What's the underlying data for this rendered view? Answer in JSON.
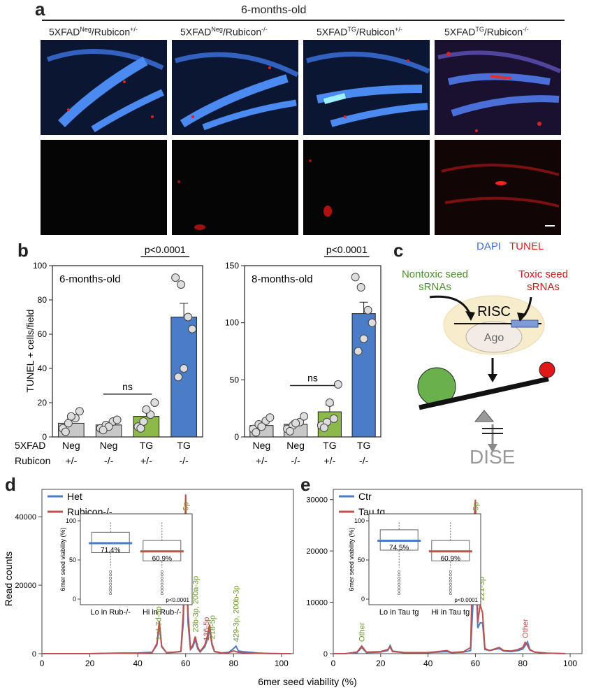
{
  "panel_a": {
    "letter": "a",
    "header": "6-months-old",
    "groups": [
      {
        "prefix": "5XFAD",
        "sup1": "Neg",
        "mid": "/Rubicon",
        "sup2": "+/-"
      },
      {
        "prefix": "5XFAD",
        "sup1": "Neg",
        "mid": "/Rubicon",
        "sup2": "-/-"
      },
      {
        "prefix": "5XFAD",
        "sup1": "TG",
        "mid": "/Rubicon",
        "sup2": "+/-"
      },
      {
        "prefix": "5XFAD",
        "sup1": "TG",
        "mid": "/Rubicon",
        "sup2": "-/-"
      }
    ],
    "stain_dapi": "DAPI",
    "stain_tunel": "TUNEL",
    "colors": {
      "dapi": "#3b6fd8",
      "tunel": "#e02020",
      "background": "#050505"
    }
  },
  "panel_b": {
    "letter": "b",
    "ylabel": "TUNEL + cells/field",
    "row_label_1": "5XFAD",
    "row_label_2": "Rubicon",
    "categories": [
      {
        "top": "Neg",
        "bottom": "+/-"
      },
      {
        "top": "Neg",
        "bottom": "-/-"
      },
      {
        "top": "TG",
        "bottom": "+/-"
      },
      {
        "top": "TG",
        "bottom": "-/-"
      }
    ],
    "bar_colors": [
      "#c8c8c8",
      "#c8c8c8",
      "#8db84a",
      "#4a7cc7"
    ],
    "plots": [
      {
        "title": "6-months-old",
        "yticks": [
          "0",
          "20",
          "40",
          "60",
          "80",
          "100"
        ],
        "ylim": [
          0,
          100
        ],
        "means": [
          8,
          7,
          12,
          70
        ],
        "errors": [
          2.5,
          1.5,
          3,
          8
        ],
        "points": [
          [
            5,
            8,
            11,
            15,
            12,
            3
          ],
          [
            5,
            7,
            9,
            10,
            6,
            4
          ],
          [
            6,
            9,
            13,
            20,
            16,
            5
          ],
          [
            93,
            89,
            70,
            63,
            40,
            35
          ]
        ],
        "ns_label": "ns",
        "p_label": "p<0.0001"
      },
      {
        "title": "8-months-old",
        "yticks": [
          "0",
          "50",
          "100",
          "150"
        ],
        "ylim": [
          0,
          150
        ],
        "means": [
          10,
          11,
          22,
          108
        ],
        "errors": [
          2.5,
          3,
          6,
          10
        ],
        "points": [
          [
            7,
            11,
            14,
            17,
            9,
            4
          ],
          [
            7,
            10,
            13,
            18,
            12,
            5
          ],
          [
            10,
            13,
            16,
            46,
            30,
            8
          ],
          [
            140,
            131,
            111,
            100,
            86,
            75
          ]
        ],
        "ns_label": "ns",
        "p_label": "p<0.0001"
      }
    ]
  },
  "panel_c": {
    "letter": "c",
    "nontoxic": "Nontoxic seed sRNAs",
    "toxic": "Toxic seed sRNAs",
    "complex": "RISC",
    "protein": "Ago",
    "outcome": "DISE",
    "colors": {
      "nontoxic": "#4c8f2f",
      "toxic": "#d01818",
      "complex": "#f7edcc",
      "green_ball": "#6ab04c",
      "red_ball": "#e01818"
    }
  },
  "chart_data": [
    {
      "panel": "d",
      "type": "line",
      "xlabel": "6mer seed viability (%)",
      "ylabel": "Read counts",
      "xlim": [
        0,
        100
      ],
      "ylim": [
        0,
        48000
      ],
      "xticks": [
        "0",
        "20",
        "40",
        "60",
        "80",
        "100"
      ],
      "yticks": [
        "0",
        "20000",
        "40000"
      ],
      "legend_placement": "top-left",
      "series": [
        {
          "name": "Het",
          "color": "#4a7cc7",
          "x": [
            0,
            10,
            20,
            30,
            40,
            46,
            48,
            49,
            50,
            52,
            55,
            58,
            59,
            60,
            61,
            62,
            63,
            64,
            65,
            66,
            68,
            69,
            70,
            71,
            72,
            75,
            78,
            80,
            81,
            82,
            84,
            90,
            95,
            100,
            104
          ],
          "y": [
            0,
            0,
            0,
            150,
            200,
            400,
            2500,
            8500,
            2000,
            300,
            400,
            600,
            9000,
            34000,
            9000,
            1200,
            2000,
            4000,
            1500,
            500,
            2000,
            4000,
            7000,
            2500,
            600,
            200,
            400,
            1500,
            2200,
            800,
            600,
            200,
            50,
            0,
            0
          ]
        },
        {
          "name": "Rubicon-/-",
          "color": "#c0504d",
          "x": [
            0,
            10,
            20,
            30,
            40,
            46,
            48,
            49,
            50,
            52,
            55,
            58,
            59,
            60,
            61,
            62,
            63,
            64,
            65,
            66,
            68,
            69,
            70,
            71,
            72,
            75,
            78,
            80,
            81,
            82,
            84,
            90,
            95,
            100,
            104
          ],
          "y": [
            0,
            0,
            0,
            100,
            150,
            300,
            3000,
            9500,
            2200,
            300,
            400,
            700,
            12000,
            46500,
            12000,
            1500,
            2500,
            5000,
            2000,
            600,
            2500,
            5000,
            8500,
            3000,
            700,
            200,
            300,
            800,
            600,
            400,
            300,
            100,
            50,
            0,
            0
          ]
        }
      ],
      "annotations": [
        {
          "text": "9-5p",
          "x": 60,
          "color": "#6a9a2a"
        },
        {
          "text": "Let-7d-5p",
          "x": 48.5,
          "color": "#6a9a2a"
        },
        {
          "text": "23b-3p, 200a-3p",
          "x": 64,
          "color": "#6a9a2a"
        },
        {
          "text": "136-5p",
          "x": 68.5,
          "color": "#c0504d"
        },
        {
          "text": "218-5p",
          "x": 71,
          "color": "#6a9a2a"
        },
        {
          "text": "429-3p, 200b-3p",
          "x": 81,
          "color": "#6a9a2a"
        }
      ],
      "inset": {
        "ylabel": "6mer seed viability (%)",
        "yticks": [
          "0",
          "50",
          "100"
        ],
        "groups": [
          {
            "label": "Lo in Rub-/-",
            "median_label": "71.4%",
            "median": 71.4,
            "color": "#4a7cc7"
          },
          {
            "label": "Hi in Rub-/-",
            "median_label": "60.9%",
            "median": 60.9,
            "color": "#c0504d"
          }
        ],
        "p_label": "p<0.0001"
      }
    },
    {
      "panel": "e",
      "type": "line",
      "xlabel": "6mer seed viability (%)",
      "ylabel": "",
      "xlim": [
        0,
        100
      ],
      "ylim": [
        0,
        32000
      ],
      "xticks": [
        "0",
        "20",
        "40",
        "60",
        "80",
        "100"
      ],
      "yticks": [
        "0",
        "10000",
        "20000",
        "30000"
      ],
      "legend_placement": "top-left",
      "series": [
        {
          "name": "Ctr",
          "color": "#4a7cc7",
          "x": [
            0,
            5,
            10,
            12,
            14,
            20,
            23,
            24,
            25,
            30,
            40,
            48,
            50,
            55,
            58,
            59,
            60,
            61,
            62,
            63,
            64,
            66,
            70,
            72,
            75,
            78,
            80,
            81,
            82,
            83,
            85,
            90,
            98
          ],
          "y": [
            0,
            0,
            200,
            1200,
            200,
            300,
            600,
            1600,
            500,
            200,
            200,
            400,
            200,
            300,
            600,
            10000,
            18000,
            5000,
            6000,
            6000,
            800,
            600,
            1000,
            500,
            400,
            600,
            900,
            1600,
            2300,
            800,
            300,
            100,
            0
          ]
        },
        {
          "name": "Tau tg",
          "color": "#c0504d",
          "x": [
            0,
            5,
            10,
            12,
            14,
            20,
            23,
            24,
            25,
            30,
            40,
            48,
            50,
            55,
            58,
            59,
            60,
            61,
            62,
            63,
            64,
            66,
            70,
            72,
            75,
            78,
            80,
            81,
            82,
            83,
            85,
            90,
            98
          ],
          "y": [
            0,
            0,
            300,
            1500,
            300,
            400,
            800,
            1300,
            400,
            200,
            200,
            600,
            200,
            400,
            1200,
            22000,
            30000,
            6000,
            9500,
            8000,
            1000,
            600,
            1200,
            600,
            500,
            800,
            1200,
            2200,
            1600,
            700,
            300,
            100,
            0
          ]
        }
      ],
      "annotations": [
        {
          "text": "9-5p",
          "x": 60,
          "color": "#6a9a2a"
        },
        {
          "text": "221-3p",
          "x": 62.5,
          "color": "#6a9a2a"
        },
        {
          "text": "Other",
          "x": 12,
          "color": "#6a9a2a"
        },
        {
          "text": "Other",
          "x": 81,
          "color": "#c0504d"
        }
      ],
      "inset": {
        "ylabel": "6mer seed viability (%)",
        "yticks": [
          "0",
          "50",
          "100"
        ],
        "groups": [
          {
            "label": "Lo in Tau tg",
            "median_label": "74.5%",
            "median": 74.5,
            "color": "#4a7cc7"
          },
          {
            "label": "Hi in Tau tg",
            "median_label": "60.9%",
            "median": 60.9,
            "color": "#c0504d"
          }
        ],
        "p_label": "p<0.0001"
      }
    }
  ]
}
